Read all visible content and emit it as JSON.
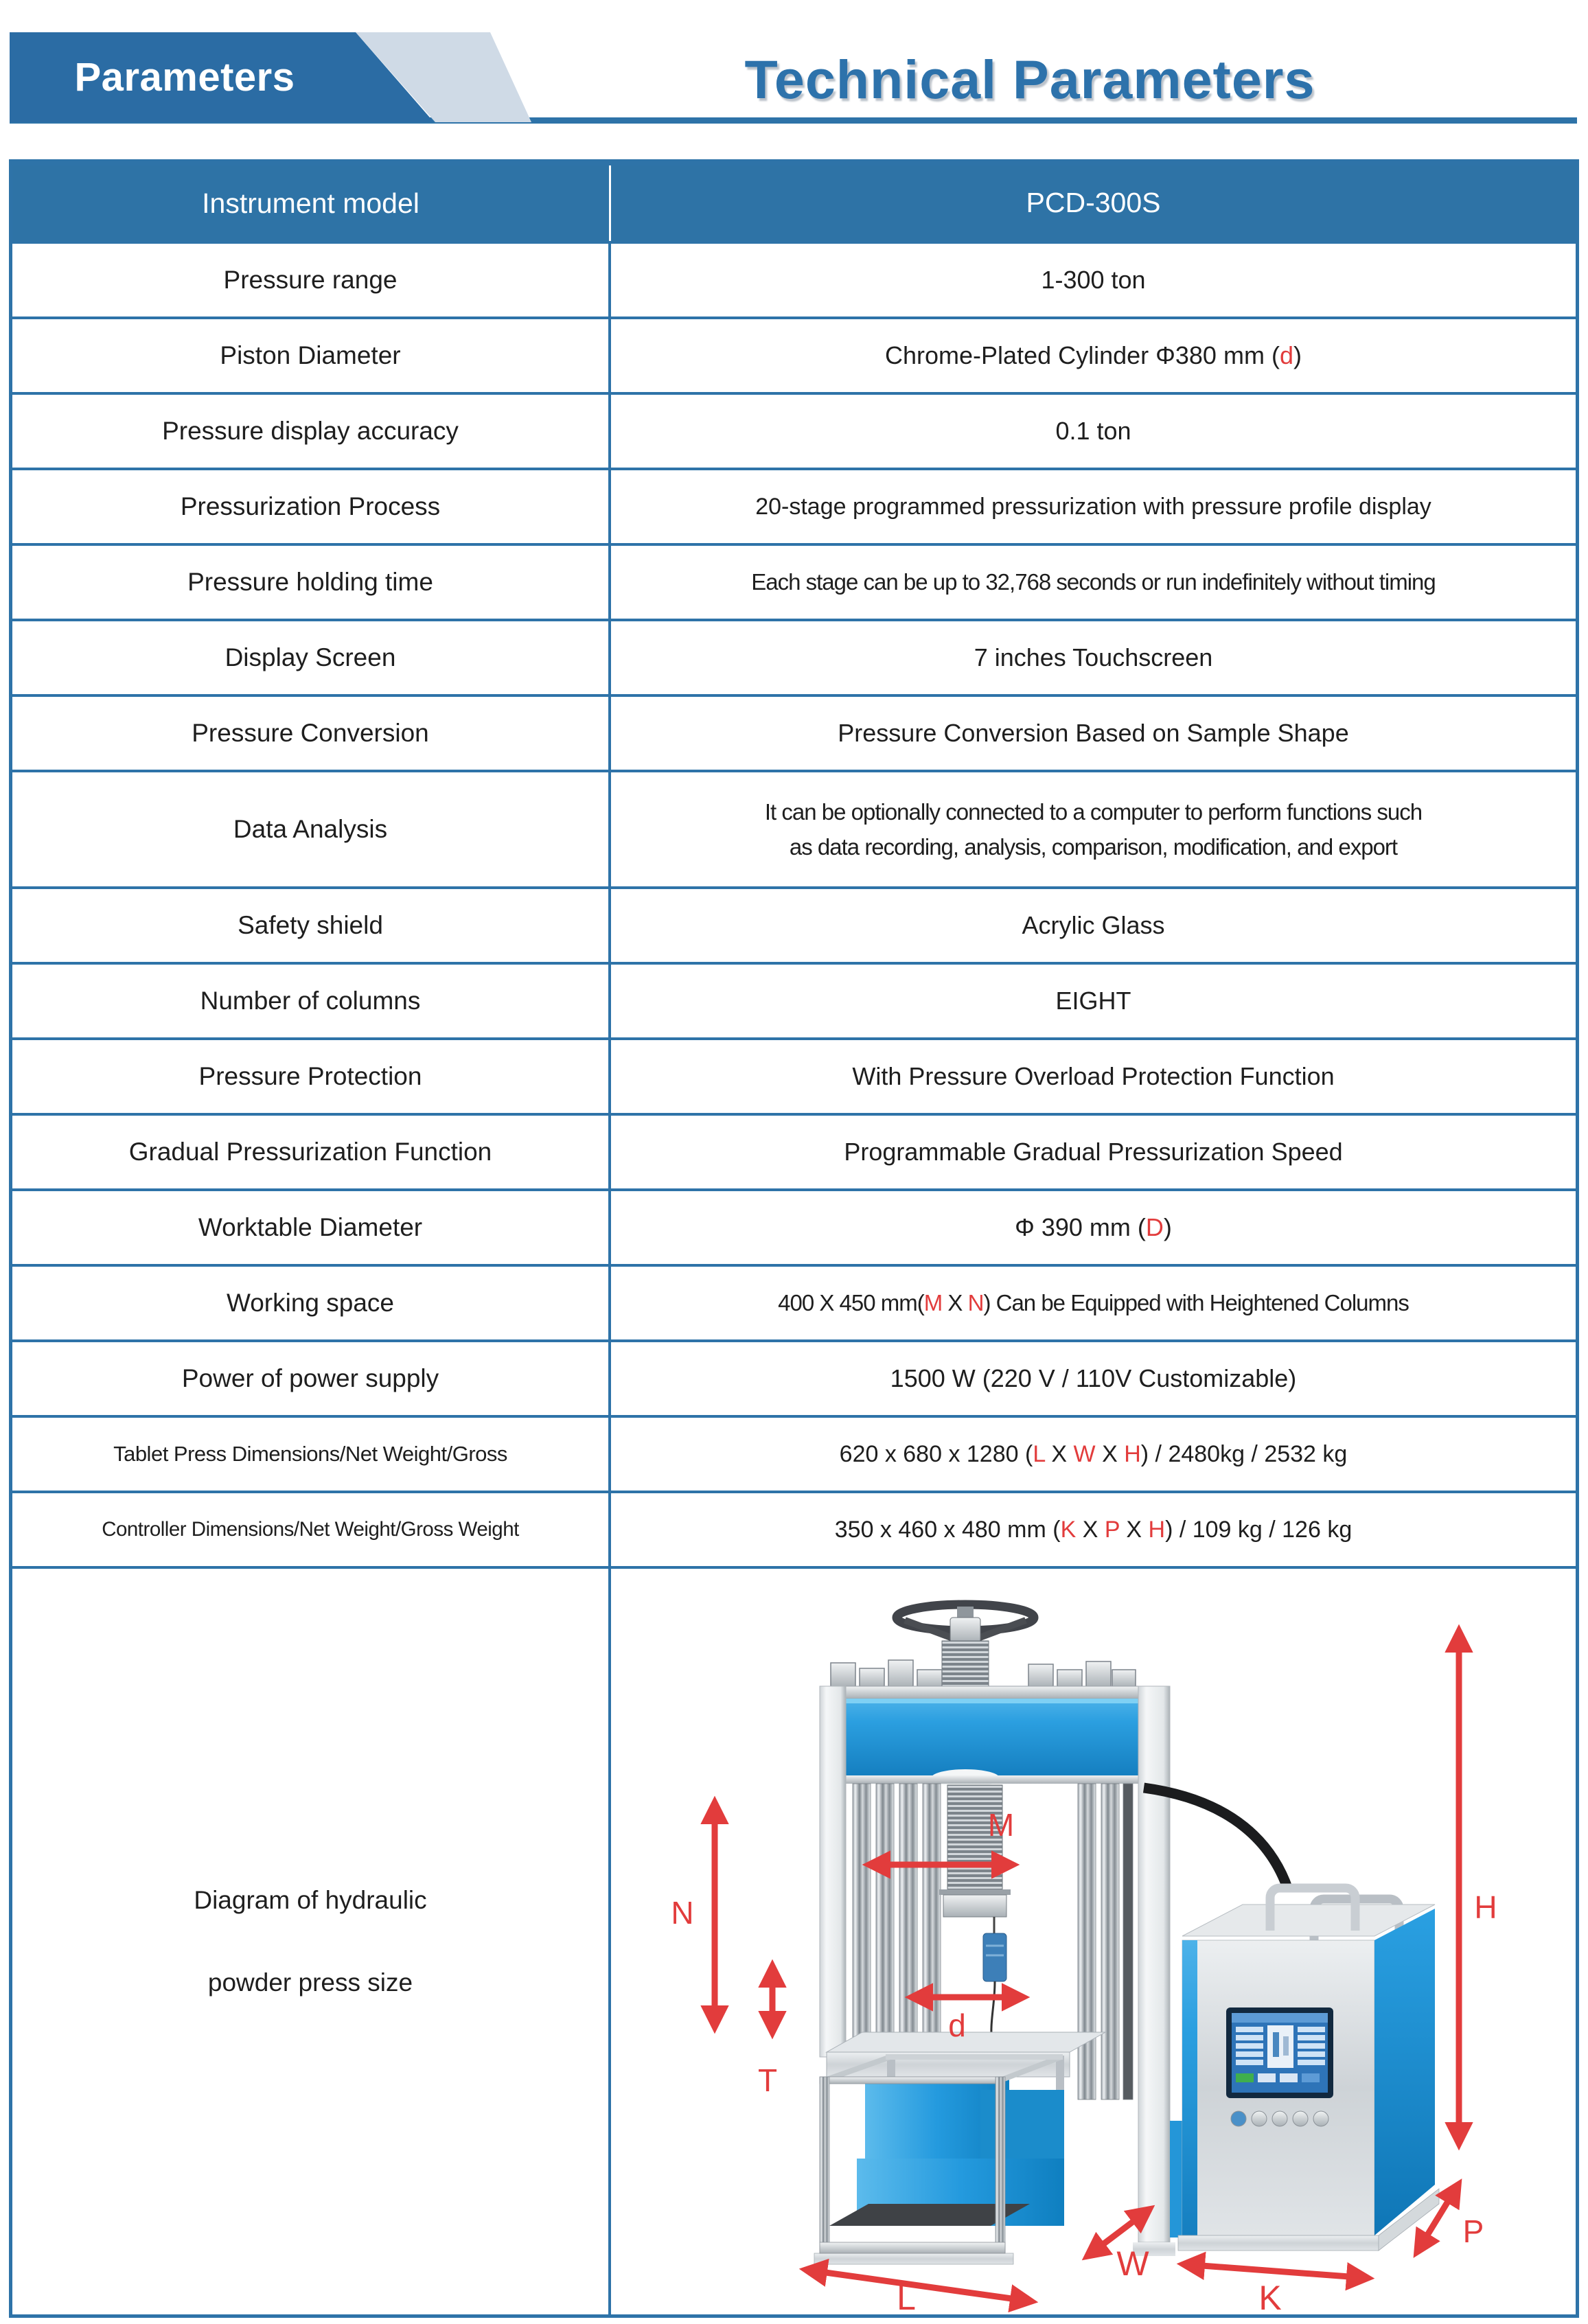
{
  "header": {
    "banner_label": "Parameters",
    "title": "Technical Parameters"
  },
  "table": {
    "rows": [
      {
        "label": "Instrument model",
        "value": [
          {
            "t": "PCD-300S"
          }
        ]
      },
      {
        "label": "Pressure range",
        "value": [
          {
            "t": "1-300 ton"
          }
        ]
      },
      {
        "label": "Piston Diameter",
        "value": [
          {
            "t": "Chrome-Plated Cylinder Φ380 mm ("
          },
          {
            "t": "d",
            "red": true
          },
          {
            "t": ")"
          }
        ]
      },
      {
        "label": "Pressure display accuracy",
        "value": [
          {
            "t": "0.1 ton"
          }
        ]
      },
      {
        "label": "Pressurization Process",
        "value": [
          {
            "t": "20-stage programmed pressurization with pressure profile display"
          }
        ]
      },
      {
        "label": "Pressure holding time",
        "value": [
          {
            "t": "Each stage can be up to 32,768 seconds or run indefinitely without timing"
          }
        ]
      },
      {
        "label": "Display Screen",
        "value": [
          {
            "t": "7 inches Touchscreen"
          }
        ]
      },
      {
        "label": "Pressure Conversion",
        "value": [
          {
            "t": "Pressure Conversion Based on Sample Shape"
          }
        ]
      },
      {
        "label": "Data Analysis",
        "value": [
          {
            "t": "It can be optionally connected to a computer to perform functions such"
          },
          {
            "br": true
          },
          {
            "t": "as data recording, analysis, comparison, modification, and export"
          }
        ]
      },
      {
        "label": "Safety shield",
        "value": [
          {
            "t": "Acrylic Glass"
          }
        ]
      },
      {
        "label": "Number of columns",
        "value": [
          {
            "t": "EIGHT"
          }
        ]
      },
      {
        "label": "Pressure Protection",
        "value": [
          {
            "t": "With Pressure Overload Protection Function"
          }
        ]
      },
      {
        "label": "Gradual Pressurization Function",
        "value": [
          {
            "t": "Programmable Gradual Pressurization Speed"
          }
        ]
      },
      {
        "label": "Worktable Diameter",
        "value": [
          {
            "t": "Φ 390 mm ("
          },
          {
            "t": "D",
            "red": true
          },
          {
            "t": ")"
          }
        ]
      },
      {
        "label": "Working space",
        "value": [
          {
            "t": "400 X 450 mm("
          },
          {
            "t": "M",
            "red": true
          },
          {
            "t": " X "
          },
          {
            "t": "N",
            "red": true
          },
          {
            "t": ") Can be Equipped with Heightened Columns"
          }
        ]
      },
      {
        "label": "Power of power supply",
        "value": [
          {
            "t": "1500 W (220 V / 110V Customizable)"
          }
        ]
      },
      {
        "label": "Tablet Press Dimensions/Net Weight/Gross",
        "value": [
          {
            "t": "620 x 680 x 1280 ("
          },
          {
            "t": "L",
            "red": true
          },
          {
            "t": " X "
          },
          {
            "t": "W",
            "red": true
          },
          {
            "t": " X "
          },
          {
            "t": "H",
            "red": true
          },
          {
            "t": ") / 2480kg / 2532 kg"
          }
        ]
      },
      {
        "label": "Controller Dimensions/Net Weight/Gross Weight",
        "value": [
          {
            "t": "350 x 460 x 480 mm ("
          },
          {
            "t": "K",
            "red": true
          },
          {
            "t": " X "
          },
          {
            "t": "P",
            "red": true
          },
          {
            "t": " X "
          },
          {
            "t": "H",
            "red": true
          },
          {
            "t": ") / 109 kg / 126 kg"
          }
        ]
      }
    ]
  },
  "diagram": {
    "caption_lines": [
      "Diagram of hydraulic",
      "powder press size"
    ],
    "labels": {
      "N": "N",
      "T": "T",
      "M": "M",
      "d": "d",
      "L": "L",
      "W": "W",
      "K": "K",
      "P": "P",
      "H": "H"
    }
  },
  "colors": {
    "table_border": "#2e73a8",
    "header_row_bg": "#2e73a6",
    "banner_bg": "#2b6ca4",
    "banner_accent": "#cfdae6",
    "title_blue": "#2d72ab",
    "dimension_red": "#e23c3c",
    "machine_blue": "#249ade"
  }
}
